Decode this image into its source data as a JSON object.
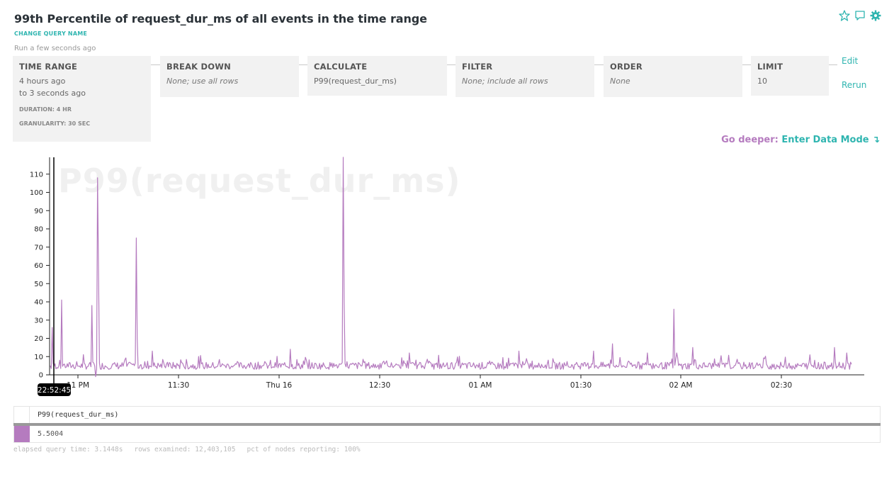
{
  "header": {
    "title": "99th Percentile of request_dur_ms of all events in the time range",
    "change_name": "CHANGE QUERY NAME",
    "run_time": "Run a few seconds ago",
    "icons": [
      "star-icon",
      "comment-icon",
      "gear-icon"
    ],
    "accent_color": "#2fb5b0"
  },
  "query": {
    "time_range": {
      "label": "TIME RANGE",
      "line1": "4 hours ago",
      "line2": "to 3 seconds ago",
      "duration": "DURATION: 4 HR",
      "granularity": "GRANULARITY: 30 SEC"
    },
    "break_down": {
      "label": "BREAK DOWN",
      "value": "None; use all rows"
    },
    "calculate": {
      "label": "CALCULATE",
      "value": "P99(request_dur_ms)"
    },
    "filter": {
      "label": "FILTER",
      "value": "None; include all rows"
    },
    "order": {
      "label": "ORDER",
      "value": "None"
    },
    "limit": {
      "label": "LIMIT",
      "value": "10"
    },
    "edit": "Edit",
    "rerun": "Rerun"
  },
  "go_deeper": {
    "label": "Go deeper:",
    "link": "Enter Data Mode ↴"
  },
  "chart_data": {
    "type": "line",
    "title": "P99(request_dur_ms)",
    "color": "#b57bbf",
    "ylim": [
      0,
      120
    ],
    "yticks": [
      0,
      10,
      20,
      30,
      40,
      50,
      60,
      70,
      80,
      90,
      100,
      110
    ],
    "xticks": [
      "11 PM",
      "11:30",
      "Thu 16",
      "12:30",
      "01 AM",
      "01:30",
      "02 AM",
      "02:30"
    ],
    "cursor_label": "22:52:45",
    "spikes": [
      {
        "i": 2,
        "v": 26
      },
      {
        "i": 12,
        "v": 41
      },
      {
        "i": 44,
        "v": 38
      },
      {
        "i": 48,
        "v": -1
      },
      {
        "i": 50,
        "v": 108
      },
      {
        "i": 51,
        "v": 60
      },
      {
        "i": 91,
        "v": 75
      },
      {
        "i": 92,
        "v": 20
      },
      {
        "i": 108,
        "v": 13
      },
      {
        "i": 254,
        "v": 14
      },
      {
        "i": 310,
        "v": 122
      },
      {
        "i": 311,
        "v": 40
      },
      {
        "i": 380,
        "v": 12
      },
      {
        "i": 496,
        "v": 13
      },
      {
        "i": 575,
        "v": 13
      },
      {
        "i": 595,
        "v": 17
      },
      {
        "i": 632,
        "v": 12
      },
      {
        "i": 660,
        "v": 36
      },
      {
        "i": 663,
        "v": 12
      },
      {
        "i": 680,
        "v": 15
      },
      {
        "i": 804,
        "v": 11
      },
      {
        "i": 830,
        "v": 15
      },
      {
        "i": 843,
        "v": 12
      }
    ],
    "baseline": [
      3,
      12
    ],
    "points": 849
  },
  "legend": {
    "series_name": "P99(request_dur_ms)",
    "value": "5.5004",
    "swatch": "#b57bbf"
  },
  "footer": {
    "elapsed": "elapsed query time: 3.1448s",
    "rows": "rows examined: 12,403,105",
    "nodes": "pct of nodes reporting: 100%"
  }
}
